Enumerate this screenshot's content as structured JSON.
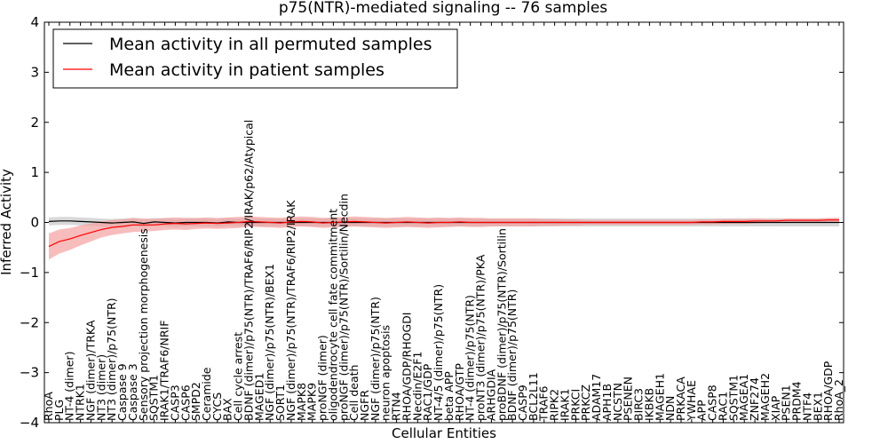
{
  "chart_data": {
    "type": "line",
    "title": "p75(NTR)-mediated signaling -- 76 samples",
    "xlabel": "Cellular Entities",
    "ylabel": "Inferred Activity",
    "ylim": [
      -4,
      4
    ],
    "yticks": [
      -4,
      -3,
      -2,
      -1,
      0,
      1,
      2,
      3,
      4
    ],
    "ytick_labels": [
      "−4",
      "−3",
      "−2",
      "−1",
      "0",
      "1",
      "2",
      "3",
      "4"
    ],
    "legend_location": "top-left",
    "series": [
      {
        "name": "Mean activity in all permuted samples",
        "color": "#000000",
        "band_color": "#c8c8c8"
      },
      {
        "name": "Mean activity in patient samples",
        "color": "#ff0000",
        "band_color": "#f4a0a0"
      }
    ],
    "categories": [
      "RhoA",
      "PLG",
      "NT-4 (dimer)",
      "NTRK1",
      "NGF (dimer)/TRKA",
      "NT3 (dimer)",
      "NT3 (dimer)/p75(NTR)",
      "Caspase 9",
      "Caspase 3",
      "Sensory projection morphogenesis",
      "SQSTM1",
      "IRAK1/TRAF6/NRIF",
      "CASP3",
      "CASP6",
      "SMPD2",
      "Ceramide",
      "CYCS",
      "BAX",
      "Cell cycle arrest",
      "BDNF (dimer)/p75(NTR)/TRAF6/RIP2/IRAK/p62/Atypical",
      "MAGED1",
      "NGF (dimer)/p75(NTR)/BEX1",
      "SORT1",
      "NGF (dimer)/p75(NTR)/TRAF6/RIP2/IRAK",
      "MAPK8",
      "MAPK9",
      "proNGF (dimer)",
      "oligodendrocyte cell fate commitment",
      "proNGF (dimer)/p75(NTR)/Sortilin/Necdin",
      "Cell death",
      "NGFR",
      "NGF (dimer)/p75(NTR)",
      "neuron apoptosis",
      "RTN4",
      "RHOA/GDP/RHOGDI",
      "Necdin/E2F1",
      "RAC1/GDP",
      "NT-4/5 (dimer)/p75(NTR)",
      "beta APP",
      "RHOA/GTP",
      "NT-4 (dimer)/p75(NTR)",
      "proNT3 (dimer)/p75(NTR)/PKA",
      "ARHGDIA",
      "proBDNF (dimer)/p75(NTR)/Sortilin",
      "BDNF (dimer)/p75(NTR)",
      "CASP9",
      "BCL2L11",
      "TRAF6",
      "RIPK2",
      "IRAK1",
      "PRKCI",
      "PRKCZ",
      "ADAM17",
      "APH1B",
      "NCSTN",
      "PSENEN",
      "BIRC3",
      "IKBKB",
      "MAGEH1",
      "NDN",
      "PRKACA",
      "YWHAE",
      "APP",
      "CASP8",
      "RAC1",
      "SQSTM1",
      "MAGEA1",
      "ZNF274",
      "MAGEH2",
      "XIAP",
      "PSEN1",
      "PRDM4",
      "NTF4",
      "BEX1",
      "RHOA/GDP",
      "RhoA_2"
    ],
    "x_label_stride": 1,
    "patient_mean": [
      -0.48,
      -0.38,
      -0.33,
      -0.26,
      -0.2,
      -0.14,
      -0.1,
      -0.08,
      -0.05,
      -0.05,
      -0.05,
      -0.03,
      -0.02,
      -0.03,
      -0.02,
      -0.01,
      -0.02,
      -0.01,
      0.0,
      0.02,
      0.01,
      0.0,
      -0.01,
      0.01,
      0.02,
      0.01,
      -0.01,
      0.0,
      0.01,
      0.02,
      0.01,
      0.0,
      -0.01,
      0.0,
      0.01,
      0.0,
      -0.01,
      0.0,
      0.0,
      0.01,
      0.0,
      0.0,
      0.0,
      0.0,
      0.0,
      0.0,
      0.0,
      0.0,
      0.0,
      0.0,
      0.0,
      0.0,
      0.0,
      0.0,
      0.0,
      0.0,
      0.0,
      0.0,
      0.0,
      0.0,
      0.0,
      0.0,
      0.01,
      0.01,
      0.02,
      0.02,
      0.02,
      0.03,
      0.03,
      0.03,
      0.04,
      0.04,
      0.04,
      0.04,
      0.05,
      0.05
    ],
    "permuted_mean": [
      0.02,
      0.03,
      0.03,
      0.02,
      0.01,
      0.0,
      -0.01,
      0.0,
      0.01,
      -0.02,
      0.01,
      0.0,
      -0.01,
      0.0,
      0.0,
      0.0,
      -0.01,
      0.01,
      0.0,
      0.0,
      0.0,
      0.0,
      0.0,
      0.0,
      0.0,
      0.0,
      0.0,
      0.0,
      0.0,
      0.0,
      0.0,
      0.0,
      0.0,
      0.0,
      0.0,
      0.0,
      0.0,
      0.0,
      0.0,
      0.0,
      0.0,
      0.0,
      0.0,
      0.0,
      0.0,
      0.0,
      0.0,
      0.0,
      0.0,
      0.0,
      0.0,
      0.0,
      0.0,
      0.0,
      0.0,
      0.0,
      0.0,
      0.0,
      0.0,
      0.0,
      0.0,
      0.0,
      0.0,
      0.0,
      0.0,
      0.0,
      0.0,
      0.0,
      0.0,
      0.0,
      0.0,
      0.0,
      0.0,
      0.0,
      0.0,
      0.0
    ],
    "patient_band_halfwidth": [
      0.26,
      0.24,
      0.22,
      0.2,
      0.18,
      0.16,
      0.15,
      0.14,
      0.14,
      0.13,
      0.12,
      0.12,
      0.12,
      0.12,
      0.11,
      0.11,
      0.11,
      0.11,
      0.11,
      0.1,
      0.1,
      0.1,
      0.1,
      0.1,
      0.1,
      0.1,
      0.1,
      0.1,
      0.1,
      0.1,
      0.1,
      0.1,
      0.1,
      0.1,
      0.1,
      0.1,
      0.1,
      0.1,
      0.09,
      0.09,
      0.09,
      0.09,
      0.08,
      0.08,
      0.08,
      0.08,
      0.08,
      0.07,
      0.07,
      0.06,
      0.06,
      0.05,
      0.05,
      0.05,
      0.05,
      0.05,
      0.05,
      0.05,
      0.05,
      0.05,
      0.05,
      0.05,
      0.05,
      0.05,
      0.05,
      0.05,
      0.05,
      0.05,
      0.04,
      0.04,
      0.04,
      0.04,
      0.04,
      0.04,
      0.04,
      0.04
    ],
    "permuted_band_halfwidth": [
      0.08,
      0.08,
      0.08,
      0.08,
      0.08,
      0.08,
      0.08,
      0.08,
      0.08,
      0.08,
      0.08,
      0.08,
      0.08,
      0.08,
      0.08,
      0.08,
      0.08,
      0.08,
      0.08,
      0.08,
      0.08,
      0.08,
      0.08,
      0.08,
      0.08,
      0.08,
      0.08,
      0.08,
      0.08,
      0.08,
      0.08,
      0.08,
      0.08,
      0.08,
      0.08,
      0.08,
      0.08,
      0.08,
      0.08,
      0.08,
      0.08,
      0.08,
      0.08,
      0.08,
      0.08,
      0.08,
      0.08,
      0.08,
      0.08,
      0.08,
      0.08,
      0.08,
      0.08,
      0.08,
      0.08,
      0.08,
      0.08,
      0.08,
      0.08,
      0.08,
      0.08,
      0.08,
      0.08,
      0.08,
      0.08,
      0.08,
      0.08,
      0.08,
      0.08,
      0.08,
      0.08,
      0.08,
      0.08,
      0.08,
      0.08,
      0.08
    ]
  }
}
